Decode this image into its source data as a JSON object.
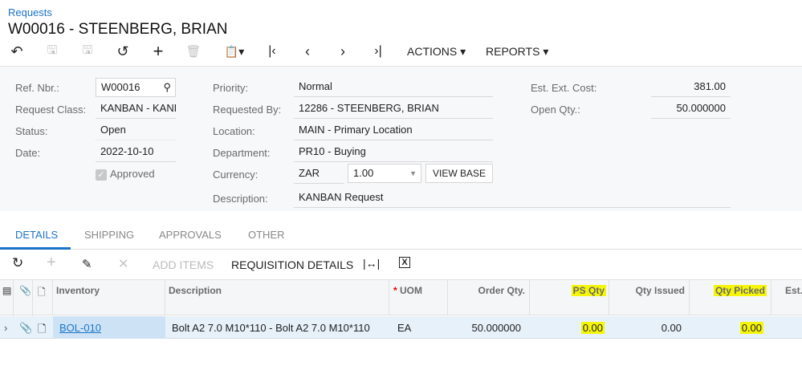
{
  "breadcrumb": "Requests",
  "title": "W00016 - STEENBERG, BRIAN",
  "toolbar": {
    "actions": "ACTIONS",
    "reports": "REPORTS"
  },
  "form": {
    "ref_nbr": {
      "label": "Ref. Nbr.:",
      "value": "W00016"
    },
    "request_class": {
      "label": "Request Class:",
      "value": "KANBAN - KANBAN"
    },
    "status": {
      "label": "Status:",
      "value": "Open"
    },
    "date": {
      "label": "Date:",
      "value": "2022-10-10"
    },
    "approved": {
      "label": "Approved",
      "checked": true
    },
    "priority": {
      "label": "Priority:",
      "value": "Normal"
    },
    "requested_by": {
      "label": "Requested By:",
      "value": "12286 - STEENBERG, BRIAN"
    },
    "location": {
      "label": "Location:",
      "value": "MAIN - Primary Location"
    },
    "department": {
      "label": "Department:",
      "value": "PR10 -  Buying"
    },
    "currency": {
      "label": "Currency:",
      "value": "ZAR",
      "rate": "1.00",
      "view_base": "VIEW BASE"
    },
    "description": {
      "label": "Description:",
      "value": "KANBAN Request"
    },
    "est_ext_cost": {
      "label": "Est. Ext. Cost:",
      "value": "381.00"
    },
    "open_qty": {
      "label": "Open Qty.:",
      "value": "50.000000"
    }
  },
  "tabs": [
    "DETAILS",
    "SHIPPING",
    "APPROVALS",
    "OTHER"
  ],
  "grid_toolbar": {
    "add_items": "ADD ITEMS",
    "requisition_details": "REQUISITION DETAILS"
  },
  "grid": {
    "columns": [
      "Inventory",
      "Description",
      "UOM",
      "Order Qty.",
      "PS Qty",
      "Qty Issued",
      "Qty Picked",
      "Est."
    ],
    "required_mark": "*",
    "rows": [
      {
        "inventory": "BOL-010",
        "description": "Bolt A2 7.0 M10*110 - Bolt A2 7.0 M10*110",
        "uom": "EA",
        "order_qty": "50.000000",
        "ps_qty": "0.00",
        "qty_issued": "0.00",
        "qty_picked": "0.00"
      }
    ]
  },
  "colors": {
    "accent": "#1a73c9",
    "highlight": "#f5f50a"
  }
}
